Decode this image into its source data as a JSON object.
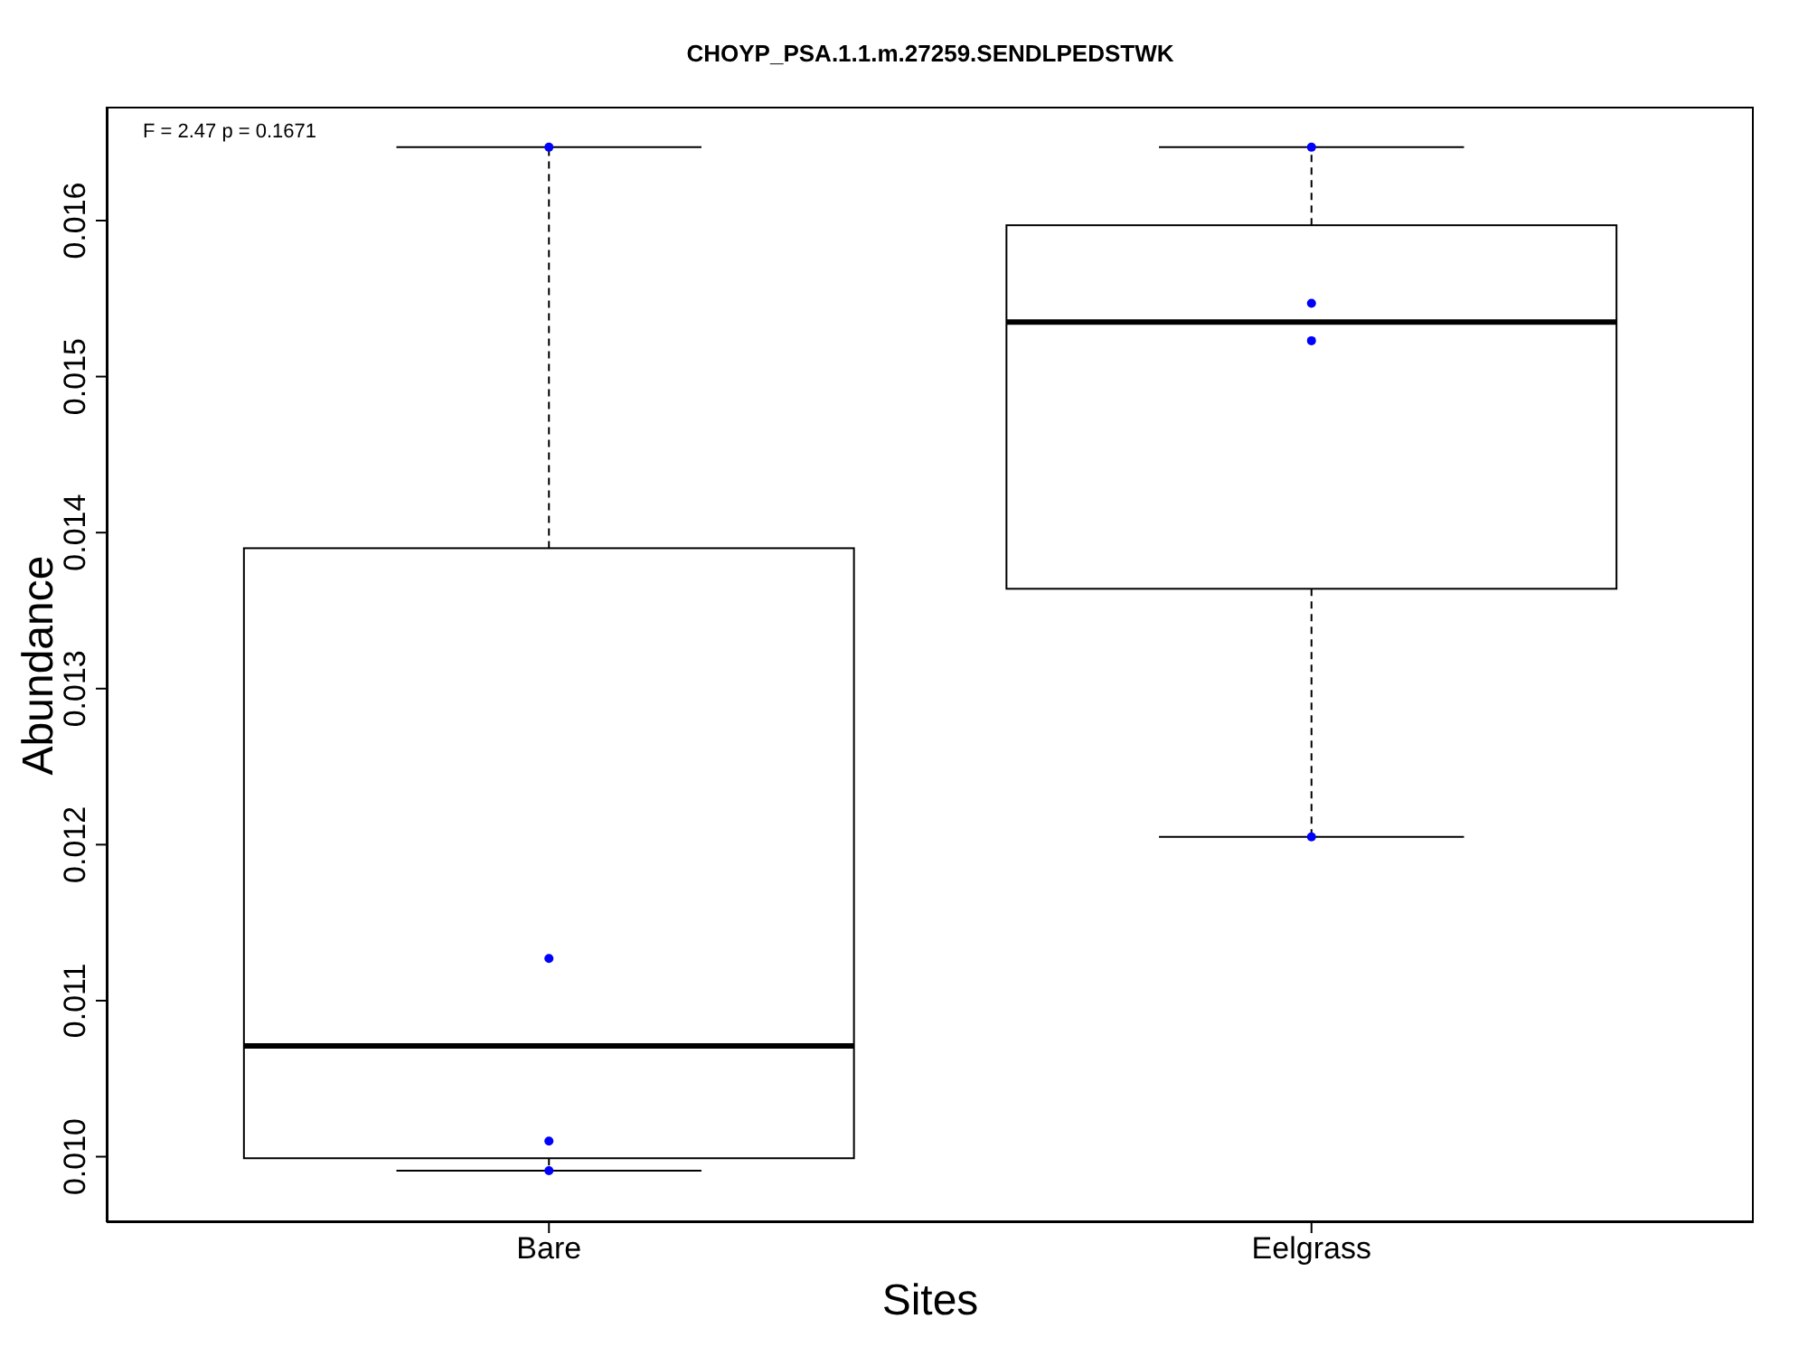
{
  "chart_data": {
    "type": "box",
    "title": "CHOYP_PSA.1.1.m.27259.SENDLPEDSTWK",
    "xlabel": "Sites",
    "ylabel": "Abundance",
    "categories": [
      "Bare",
      "Eelgrass"
    ],
    "boxes": [
      {
        "low": 0.00991,
        "q1": 0.00999,
        "median": 0.01071,
        "q3": 0.0139,
        "high": 0.01647
      },
      {
        "low": 0.01205,
        "q1": 0.01364,
        "median": 0.01535,
        "q3": 0.01597,
        "high": 0.01647
      }
    ],
    "series": [
      {
        "type": "scatter",
        "color": "#0000ff",
        "x": [
          "Bare",
          "Bare",
          "Bare",
          "Bare",
          "Eelgrass",
          "Eelgrass",
          "Eelgrass",
          "Eelgrass"
        ],
        "values": [
          0.00991,
          0.0101,
          0.01127,
          0.01647,
          0.01647,
          0.01547,
          0.01523,
          0.01205
        ]
      }
    ],
    "ylim": [
      0.00958,
      0.01673
    ],
    "yticks": [
      {
        "value": 0.01,
        "label": "0.010"
      },
      {
        "value": 0.011,
        "label": "0.011"
      },
      {
        "value": 0.012,
        "label": "0.012"
      },
      {
        "value": 0.013,
        "label": "0.013"
      },
      {
        "value": 0.014,
        "label": "0.014"
      },
      {
        "value": 0.015,
        "label": "0.015"
      },
      {
        "value": 0.016,
        "label": "0.016"
      }
    ],
    "annotations": [
      "F = 2.47 p = 0.1671"
    ]
  }
}
